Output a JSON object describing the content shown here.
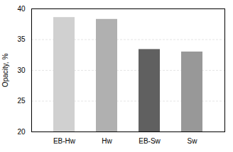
{
  "chart_data": {
    "type": "bar",
    "categories": [
      "EB-Hw",
      "Hw",
      "EB-Sw",
      "Sw"
    ],
    "values": [
      38.6,
      38.3,
      33.4,
      33.0
    ],
    "colors": [
      "#d0d0d0",
      "#b0b0b0",
      "#606060",
      "#989898"
    ],
    "ylabel": "Opacity, %",
    "ylim": [
      20,
      40
    ],
    "yticks": [
      20,
      25,
      30,
      35,
      40
    ],
    "grid": true
  }
}
